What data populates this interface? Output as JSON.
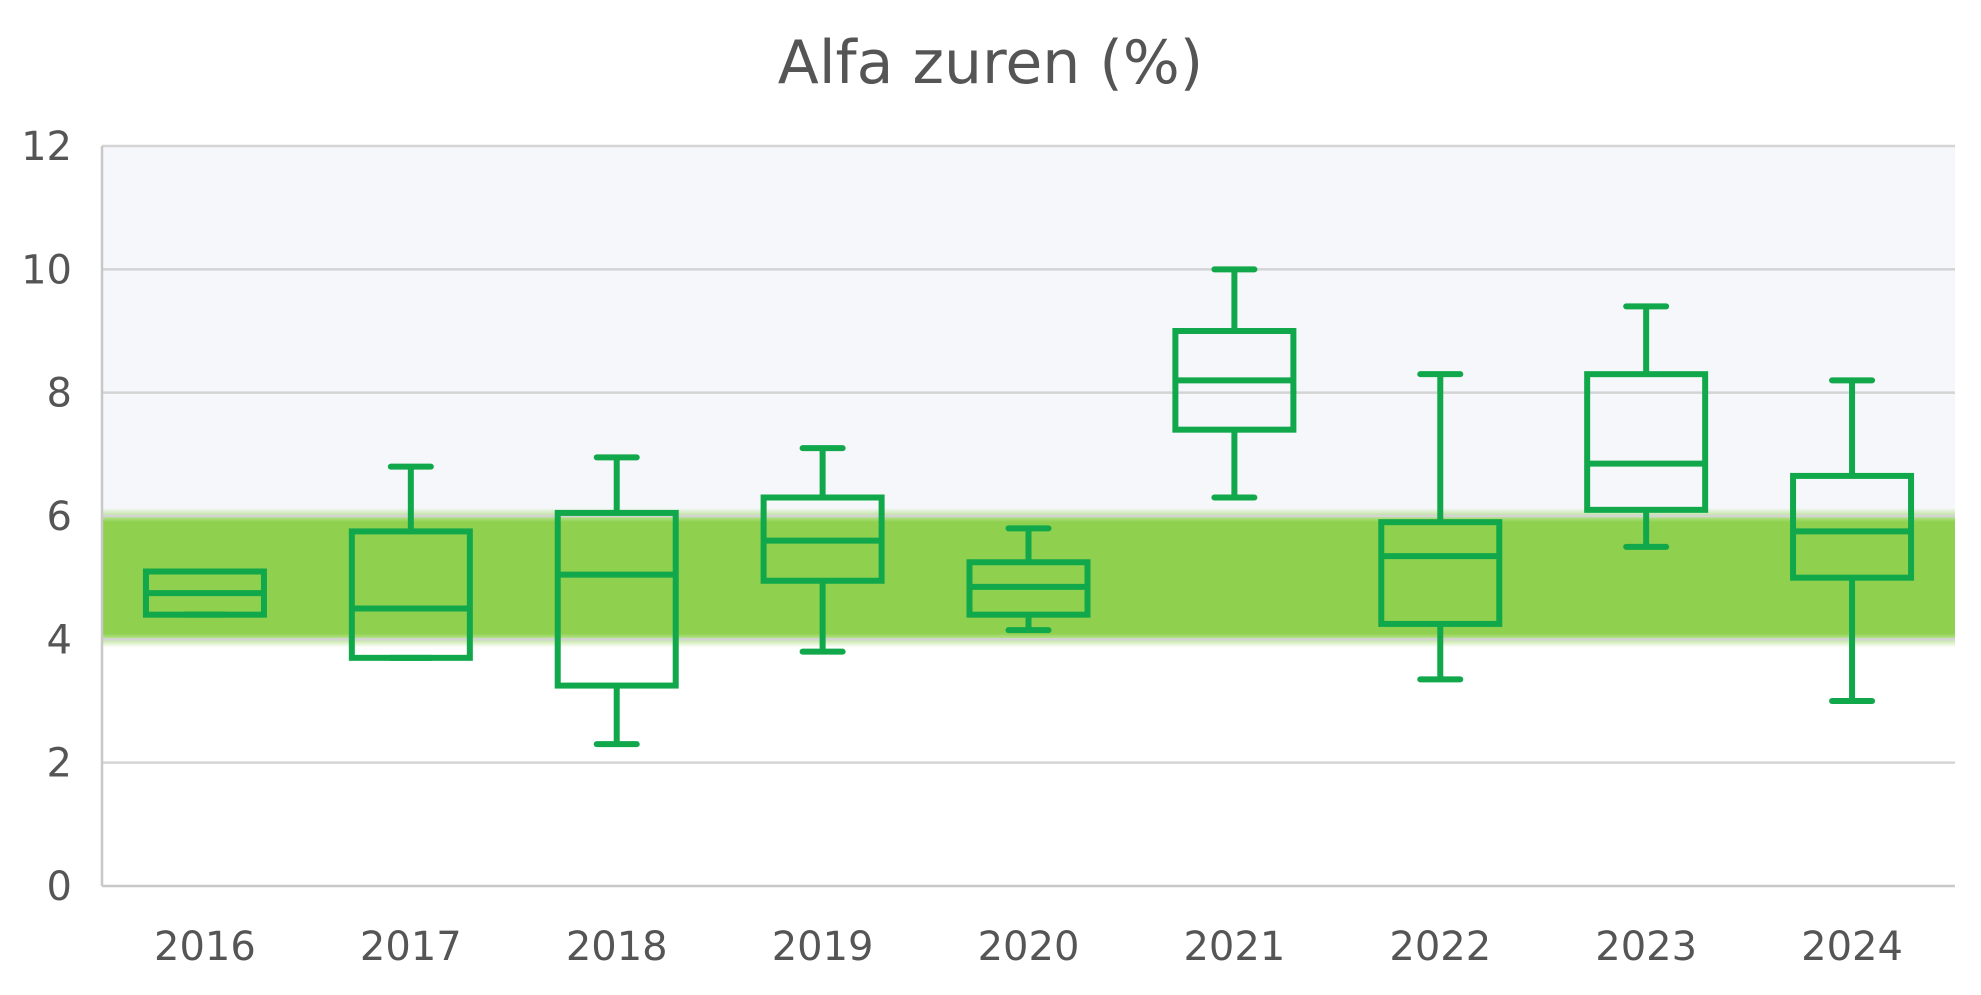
{
  "chart_data": {
    "type": "box",
    "title": "Alfa zuren (%)",
    "xlabel": "",
    "ylabel": "",
    "ylim": [
      0,
      12
    ],
    "y_ticks": [
      "0",
      "2",
      "4",
      "6",
      "8",
      "10",
      "12"
    ],
    "categories": [
      "2016",
      "2017",
      "2018",
      "2019",
      "2020",
      "2021",
      "2022",
      "2023",
      "2024"
    ],
    "boxes": [
      {
        "min": 4.4,
        "q1": 4.4,
        "median": 4.75,
        "q3": 5.1,
        "max": 5.1
      },
      {
        "min": 3.7,
        "q1": 3.7,
        "median": 4.5,
        "q3": 5.75,
        "max": 6.8
      },
      {
        "min": 2.3,
        "q1": 3.25,
        "median": 5.05,
        "q3": 6.05,
        "max": 6.95
      },
      {
        "min": 3.8,
        "q1": 4.95,
        "median": 5.6,
        "q3": 6.3,
        "max": 7.1
      },
      {
        "min": 4.15,
        "q1": 4.4,
        "median": 4.85,
        "q3": 5.25,
        "max": 5.8
      },
      {
        "min": 6.3,
        "q1": 7.4,
        "median": 8.2,
        "q3": 9.0,
        "max": 10.0
      },
      {
        "min": 3.35,
        "q1": 4.25,
        "median": 5.35,
        "q3": 5.9,
        "max": 8.3
      },
      {
        "min": 5.5,
        "q1": 6.1,
        "median": 6.85,
        "q3": 8.3,
        "max": 9.4
      },
      {
        "min": 3.0,
        "q1": 5.0,
        "median": 5.75,
        "q3": 6.65,
        "max": 8.2
      }
    ],
    "reference_band": {
      "from": 4.0,
      "to": 6.0,
      "color": "#8fd14f"
    },
    "upper_region": {
      "from": 6.0,
      "to": 12.0,
      "color": "#f6f7fb"
    },
    "box_color": "#10a84a",
    "grid": true,
    "legend": "none"
  }
}
